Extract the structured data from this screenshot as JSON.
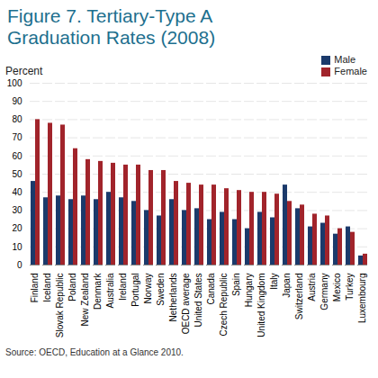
{
  "chart_data": {
    "type": "bar",
    "title": "Figure 7. Tertiary-Type A Graduation Rates (2008)",
    "y_label": "Percent",
    "source": "Source: OECD, Education at a Glance 2010.",
    "categories": [
      "Finland",
      "Iceland",
      "Slovak Republic",
      "Poland",
      "New Zealand",
      "Denmark",
      "Australia",
      "Ireland",
      "Portugal",
      "Norway",
      "Sweden",
      "Netherlands",
      "OECD average",
      "United States",
      "Canada",
      "Czech Republic",
      "Spain",
      "Hungary",
      "United Kingdom",
      "Italy",
      "Japan",
      "Switzerland",
      "Austria",
      "Germany",
      "Mexico",
      "Turkey",
      "Luxembourg"
    ],
    "series": [
      {
        "name": "Male",
        "color": "#1b3a6b",
        "values": [
          46,
          37,
          38,
          36,
          38,
          36,
          40,
          37,
          35,
          30,
          27,
          36,
          30,
          31,
          25,
          29,
          25,
          20,
          29,
          26,
          44,
          31,
          21,
          23,
          17,
          21,
          5
        ]
      },
      {
        "name": "Female",
        "color": "#a1242b",
        "values": [
          80,
          78,
          77,
          64,
          58,
          57,
          56,
          55,
          55,
          52,
          52,
          46,
          45,
          44,
          44,
          42,
          41,
          40,
          40,
          39,
          35,
          33,
          28,
          27,
          20,
          18,
          6
        ]
      }
    ],
    "ylim": [
      0,
      100
    ],
    "yticks": [
      0,
      10,
      20,
      30,
      40,
      50,
      60,
      70,
      80,
      90,
      100
    ],
    "grid": true,
    "legend": "top-right"
  }
}
